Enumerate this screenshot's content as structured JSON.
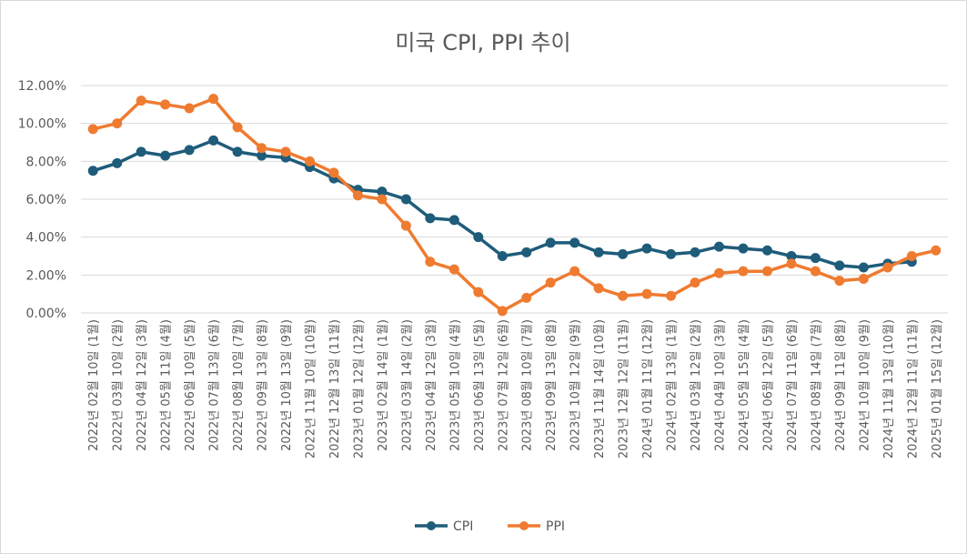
{
  "chart_data": {
    "type": "line",
    "title": "미국 CPI, PPI 추이",
    "xlabel": "",
    "ylabel": "",
    "ylim": [
      0,
      12
    ],
    "y_ticks": [
      "0.00%",
      "2.00%",
      "4.00%",
      "6.00%",
      "8.00%",
      "10.00%",
      "12.00%"
    ],
    "grid": true,
    "legend_position": "bottom",
    "categories": [
      "2022년 02월 10일 (1월)",
      "2022년 03월 10일 (2월)",
      "2022년 04월 12일 (3월)",
      "2022년 05월 11일 (4월)",
      "2022년 06월 10일 (5월)",
      "2022년 07월 13일 (6월)",
      "2022년 08월 10일 (7월)",
      "2022년 09월 13일 (8월)",
      "2022년 10월 13일 (9월)",
      "2022년 11월 10일 (10월)",
      "2022년 12월 13일 (11월)",
      "2023년 01월 12일 (12월)",
      "2023년 02월 14일 (1월)",
      "2023년 03월 14일 (2월)",
      "2023년 04월 12일 (3월)",
      "2023년 05월 10일 (4월)",
      "2023년 06월 13일 (5월)",
      "2023년 07월 12일 (6월)",
      "2023년 08월 10일 (7월)",
      "2023년 09월 13일 (8월)",
      "2023년 10월 12일 (9월)",
      "2023년 11월 14일 (10월)",
      "2023년 12월 12일 (11월)",
      "2024년 01월 11일 (12월)",
      "2024년 02월 13일 (1월)",
      "2024년 03월 12일 (2월)",
      "2024년 04월 10일 (3월)",
      "2024년 05월 15일 (4월)",
      "2024년 06월 12일 (5월)",
      "2024년 07월 11일 (6월)",
      "2024년 08월 14일 (7월)",
      "2024년 09월 11일 (8월)",
      "2024년 10월 10일 (9월)",
      "2024년 11월 13일 (10월)",
      "2024년 12월 11일 (11월)",
      "2025년 01월 15일 (12월)"
    ],
    "series": [
      {
        "name": "CPI",
        "color": "#1f5c7a",
        "values": [
          7.5,
          7.9,
          8.5,
          8.3,
          8.6,
          9.1,
          8.5,
          8.3,
          8.2,
          7.7,
          7.1,
          6.5,
          6.4,
          6.0,
          5.0,
          4.9,
          4.0,
          3.0,
          3.2,
          3.7,
          3.7,
          3.2,
          3.1,
          3.4,
          3.1,
          3.2,
          3.5,
          3.4,
          3.3,
          3.0,
          2.9,
          2.5,
          2.4,
          2.6,
          2.7,
          null
        ]
      },
      {
        "name": "PPI",
        "color": "#ef7b31",
        "values": [
          9.7,
          10.0,
          11.2,
          11.0,
          10.8,
          11.3,
          9.8,
          8.7,
          8.5,
          8.0,
          7.4,
          6.2,
          6.0,
          4.6,
          2.7,
          2.3,
          1.1,
          0.1,
          0.8,
          1.6,
          2.2,
          1.3,
          0.9,
          1.0,
          0.9,
          1.6,
          2.1,
          2.2,
          2.2,
          2.6,
          2.2,
          1.7,
          1.8,
          2.4,
          3.0,
          3.3
        ]
      }
    ]
  }
}
